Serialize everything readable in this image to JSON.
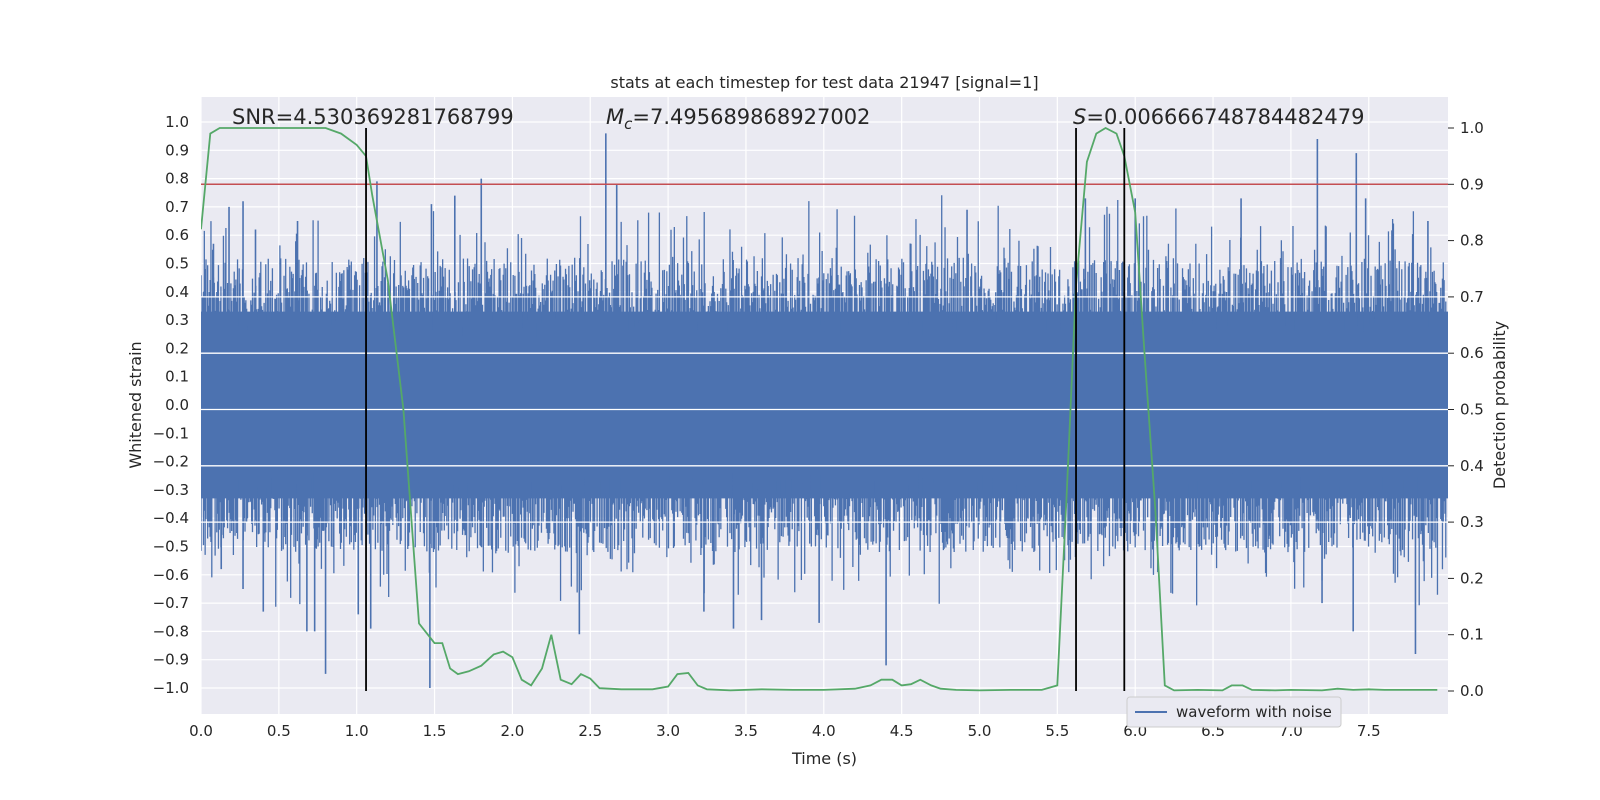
{
  "chart_data": {
    "type": "line",
    "title": "stats at each timestep for test data 21947 [signal=1]",
    "xlabel": "Time (s)",
    "ylabel": "Whitened strain",
    "y2label": "Detection probability",
    "xlim": [
      0.0,
      8.0
    ],
    "ylim": [
      -1.1,
      1.05
    ],
    "y2lim": [
      -0.05,
      1.05
    ],
    "xticks": [
      "0.0",
      "0.5",
      "1.0",
      "1.5",
      "2.0",
      "2.5",
      "3.0",
      "3.5",
      "4.0",
      "4.5",
      "5.0",
      "5.5",
      "6.0",
      "6.5",
      "7.0",
      "7.5"
    ],
    "yticks": [
      "1.0",
      "0.9",
      "0.8",
      "0.7",
      "0.6",
      "0.5",
      "0.4",
      "0.3",
      "0.2",
      "0.1",
      "0.0",
      "-0.1",
      "-0.2",
      "-0.3",
      "-0.4",
      "-0.5",
      "-0.6",
      "-0.7",
      "-0.8",
      "-0.9",
      "-1.0"
    ],
    "y2ticks": [
      "1.0",
      "0.9",
      "0.8",
      "0.7",
      "0.6",
      "0.5",
      "0.4",
      "0.3",
      "0.2",
      "0.1",
      "0.0"
    ],
    "grid": true,
    "legend": {
      "position": "lower-right",
      "entries": [
        "waveform with noise"
      ]
    },
    "annotations": {
      "snr": "SNR=4.530369281768799",
      "mc_symbol": "M",
      "mc_sub": "c",
      "mc_value": "=7.495689868927002",
      "s_symbol": "S",
      "s_value": "=0.006666748784482479"
    },
    "threshold": 0.9,
    "vlines": [
      1.06,
      5.62,
      5.93
    ],
    "colors": {
      "waveform": "#4c72b0",
      "probability": "#55a868",
      "threshold": "#c44e52",
      "vline": "#000000",
      "background": "#eaeaf2"
    },
    "waveform": {
      "name": "waveform with noise",
      "typical_amplitude": 0.38,
      "spike_peaks": [
        {
          "t": 0.08,
          "y": 0.57
        },
        {
          "t": 0.18,
          "y": 0.7
        },
        {
          "t": 0.27,
          "y": 0.72
        },
        {
          "t": 0.35,
          "y": 0.62
        },
        {
          "t": 0.62,
          "y": 0.65
        },
        {
          "t": 1.13,
          "y": 0.79
        },
        {
          "t": 1.48,
          "y": 0.71
        },
        {
          "t": 1.63,
          "y": 0.74
        },
        {
          "t": 1.8,
          "y": 0.8
        },
        {
          "t": 2.6,
          "y": 0.96
        },
        {
          "t": 2.67,
          "y": 0.78
        },
        {
          "t": 4.92,
          "y": 0.69
        },
        {
          "t": 5.68,
          "y": 0.73
        },
        {
          "t": 6.0,
          "y": 0.73
        },
        {
          "t": 6.68,
          "y": 0.73
        },
        {
          "t": 7.17,
          "y": 0.94
        },
        {
          "t": 7.42,
          "y": 0.89
        },
        {
          "t": 7.48,
          "y": 0.73
        },
        {
          "t": 7.88,
          "y": 0.65
        }
      ],
      "dip_peaks": [
        {
          "t": 0.13,
          "y": -0.58
        },
        {
          "t": 0.27,
          "y": -0.65
        },
        {
          "t": 0.4,
          "y": -0.73
        },
        {
          "t": 0.68,
          "y": -0.8
        },
        {
          "t": 0.73,
          "y": -0.8
        },
        {
          "t": 0.8,
          "y": -0.95
        },
        {
          "t": 1.01,
          "y": -0.74
        },
        {
          "t": 1.09,
          "y": -0.79
        },
        {
          "t": 1.47,
          "y": -1.0
        },
        {
          "t": 2.43,
          "y": -0.81
        },
        {
          "t": 3.23,
          "y": -0.73
        },
        {
          "t": 3.42,
          "y": -0.79
        },
        {
          "t": 3.6,
          "y": -0.76
        },
        {
          "t": 3.97,
          "y": -0.77
        },
        {
          "t": 4.4,
          "y": -0.92
        },
        {
          "t": 7.2,
          "y": -0.7
        },
        {
          "t": 7.4,
          "y": -0.8
        },
        {
          "t": 7.8,
          "y": -0.88
        }
      ]
    },
    "probability": {
      "name": "detection probability",
      "t": [
        0.0,
        0.06,
        0.12,
        0.2,
        0.4,
        0.6,
        0.8,
        0.9,
        1.0,
        1.06,
        1.1,
        1.2,
        1.3,
        1.4,
        1.5,
        1.55,
        1.6,
        1.65,
        1.72,
        1.8,
        1.88,
        1.94,
        2.0,
        2.06,
        2.12,
        2.19,
        2.25,
        2.31,
        2.38,
        2.44,
        2.5,
        2.56,
        2.7,
        2.9,
        3.0,
        3.06,
        3.13,
        3.19,
        3.25,
        3.4,
        3.6,
        3.8,
        4.0,
        4.2,
        4.3,
        4.37,
        4.44,
        4.5,
        4.56,
        4.62,
        4.69,
        4.75,
        4.85,
        5.0,
        5.2,
        5.4,
        5.5,
        5.56,
        5.62,
        5.69,
        5.75,
        5.81,
        5.88,
        5.93,
        6.0,
        6.06,
        6.13,
        6.19,
        6.25,
        6.4,
        6.56,
        6.62,
        6.69,
        6.75,
        6.9,
        7.0,
        7.2,
        7.3,
        7.4,
        7.5,
        7.6,
        7.94
      ],
      "p": [
        0.82,
        0.99,
        1.0,
        1.0,
        1.0,
        1.0,
        1.0,
        0.99,
        0.97,
        0.95,
        0.88,
        0.73,
        0.5,
        0.12,
        0.085,
        0.085,
        0.04,
        0.03,
        0.035,
        0.045,
        0.065,
        0.07,
        0.06,
        0.02,
        0.01,
        0.04,
        0.1,
        0.02,
        0.012,
        0.03,
        0.022,
        0.005,
        0.003,
        0.003,
        0.008,
        0.03,
        0.032,
        0.01,
        0.003,
        0.001,
        0.003,
        0.002,
        0.002,
        0.004,
        0.01,
        0.02,
        0.02,
        0.01,
        0.012,
        0.02,
        0.01,
        0.004,
        0.002,
        0.001,
        0.002,
        0.002,
        0.01,
        0.35,
        0.72,
        0.94,
        0.99,
        1.0,
        0.99,
        0.95,
        0.85,
        0.6,
        0.32,
        0.01,
        0.001,
        0.002,
        0.001,
        0.01,
        0.01,
        0.002,
        0.001,
        0.002,
        0.001,
        0.004,
        0.002,
        0.003,
        0.002,
        0.002
      ]
    }
  }
}
